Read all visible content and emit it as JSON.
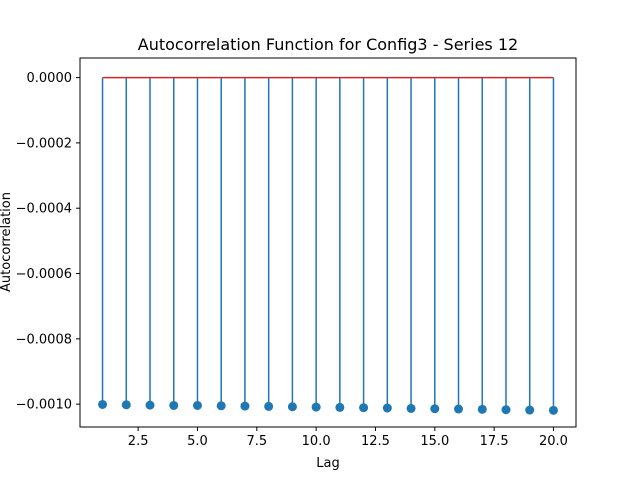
{
  "chart_data": {
    "type": "stem",
    "title": "Autocorrelation Function for Config3 - Series 12",
    "xlabel": "Lag",
    "ylabel": "Autocorrelation",
    "xlim": [
      0.05,
      20.95
    ],
    "ylim": [
      -0.00107,
      6e-05
    ],
    "x_ticks": [
      2.5,
      5.0,
      7.5,
      10.0,
      12.5,
      15.0,
      17.5,
      20.0
    ],
    "x_tick_labels": [
      "2.5",
      "5.0",
      "7.5",
      "10.0",
      "12.5",
      "15.0",
      "17.5",
      "20.0"
    ],
    "y_ticks": [
      0.0,
      -0.0002,
      -0.0004,
      -0.0006,
      -0.0008,
      -0.001
    ],
    "y_tick_labels": [
      "0.0000",
      "−0.0002",
      "−0.0004",
      "−0.0006",
      "−0.0008",
      "−0.0010"
    ],
    "baseline": 0,
    "grid": false,
    "colors": {
      "stem": "#1f77b4",
      "marker": "#1f77b4",
      "baseline": "#d62728"
    },
    "x": [
      1,
      2,
      3,
      4,
      5,
      6,
      7,
      8,
      9,
      10,
      11,
      12,
      13,
      14,
      15,
      16,
      17,
      18,
      19,
      20
    ],
    "values": [
      -0.001001,
      -0.001002,
      -0.001003,
      -0.001004,
      -0.001004,
      -0.001005,
      -0.001006,
      -0.001007,
      -0.001008,
      -0.001009,
      -0.00101,
      -0.001011,
      -0.001012,
      -0.001013,
      -0.001014,
      -0.001015,
      -0.001016,
      -0.001017,
      -0.001018,
      -0.001019
    ]
  }
}
